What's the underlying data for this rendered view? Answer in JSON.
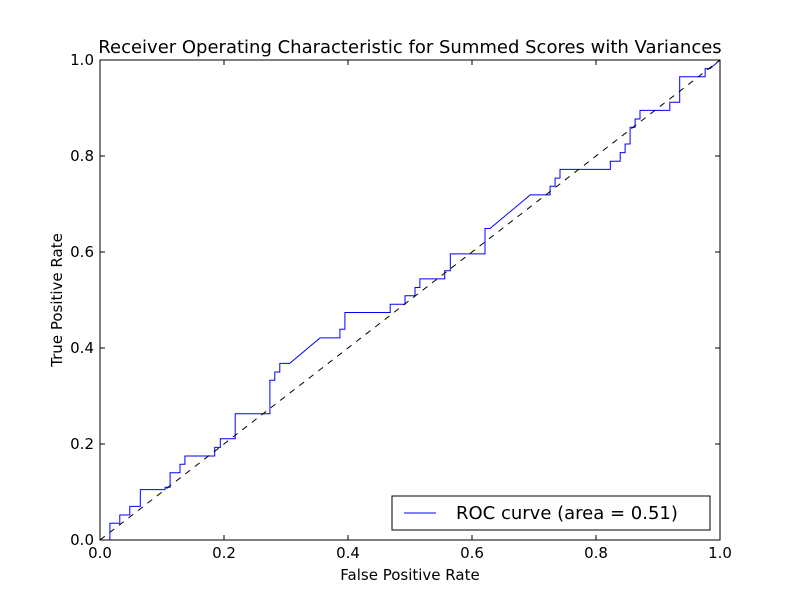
{
  "chart_data": {
    "type": "line",
    "title": "Receiver Operating Characteristic for Summed Scores with Variances",
    "xlabel": "False Positive Rate",
    "ylabel": "True Positive Rate",
    "xlim": [
      0.0,
      1.0
    ],
    "ylim": [
      0.0,
      1.0
    ],
    "xticks": [
      "0.0",
      "0.2",
      "0.4",
      "0.6",
      "0.8",
      "1.0"
    ],
    "yticks": [
      "0.0",
      "0.2",
      "0.4",
      "0.6",
      "0.8",
      "1.0"
    ],
    "grid": false,
    "legend_position": "lower right",
    "series": [
      {
        "name": "ROC curve (area = 0.51)",
        "color": "#0000ff",
        "style": "solid",
        "x": [
          0.0,
          0.016,
          0.016,
          0.032,
          0.032,
          0.048,
          0.048,
          0.065,
          0.065,
          0.105,
          0.105,
          0.113,
          0.113,
          0.129,
          0.129,
          0.137,
          0.137,
          0.185,
          0.185,
          0.194,
          0.194,
          0.218,
          0.218,
          0.274,
          0.274,
          0.282,
          0.282,
          0.29,
          0.29,
          0.306,
          0.355,
          0.387,
          0.387,
          0.395,
          0.395,
          0.468,
          0.468,
          0.492,
          0.492,
          0.508,
          0.508,
          0.516,
          0.516,
          0.556,
          0.556,
          0.565,
          0.565,
          0.621,
          0.621,
          0.629,
          0.694,
          0.726,
          0.726,
          0.734,
          0.734,
          0.742,
          0.742,
          0.766,
          0.766,
          0.774,
          0.774,
          0.823,
          0.823,
          0.839,
          0.839,
          0.847,
          0.847,
          0.855,
          0.855,
          0.863,
          0.863,
          0.871,
          0.871,
          0.903,
          0.903,
          0.919,
          0.919,
          0.935,
          0.935,
          0.976,
          0.976,
          0.984,
          0.984,
          1.0
        ],
        "y": [
          0.0,
          0.0,
          0.035,
          0.035,
          0.052,
          0.052,
          0.07,
          0.07,
          0.105,
          0.105,
          0.11,
          0.11,
          0.14,
          0.14,
          0.158,
          0.158,
          0.175,
          0.175,
          0.193,
          0.193,
          0.211,
          0.211,
          0.263,
          0.263,
          0.333,
          0.333,
          0.35,
          0.35,
          0.368,
          0.368,
          0.421,
          0.421,
          0.439,
          0.439,
          0.474,
          0.474,
          0.491,
          0.491,
          0.509,
          0.509,
          0.526,
          0.526,
          0.544,
          0.544,
          0.561,
          0.561,
          0.596,
          0.596,
          0.649,
          0.649,
          0.719,
          0.719,
          0.737,
          0.737,
          0.754,
          0.754,
          0.772,
          0.772,
          0.772,
          0.772,
          0.772,
          0.772,
          0.789,
          0.789,
          0.807,
          0.807,
          0.825,
          0.825,
          0.86,
          0.86,
          0.877,
          0.877,
          0.895,
          0.895,
          0.895,
          0.895,
          0.912,
          0.912,
          0.965,
          0.965,
          0.982,
          0.982,
          0.982,
          1.0
        ]
      },
      {
        "name": "",
        "color": "#000000",
        "style": "dashed",
        "x": [
          0.0,
          1.0
        ],
        "y": [
          0.0,
          1.0
        ]
      }
    ]
  }
}
